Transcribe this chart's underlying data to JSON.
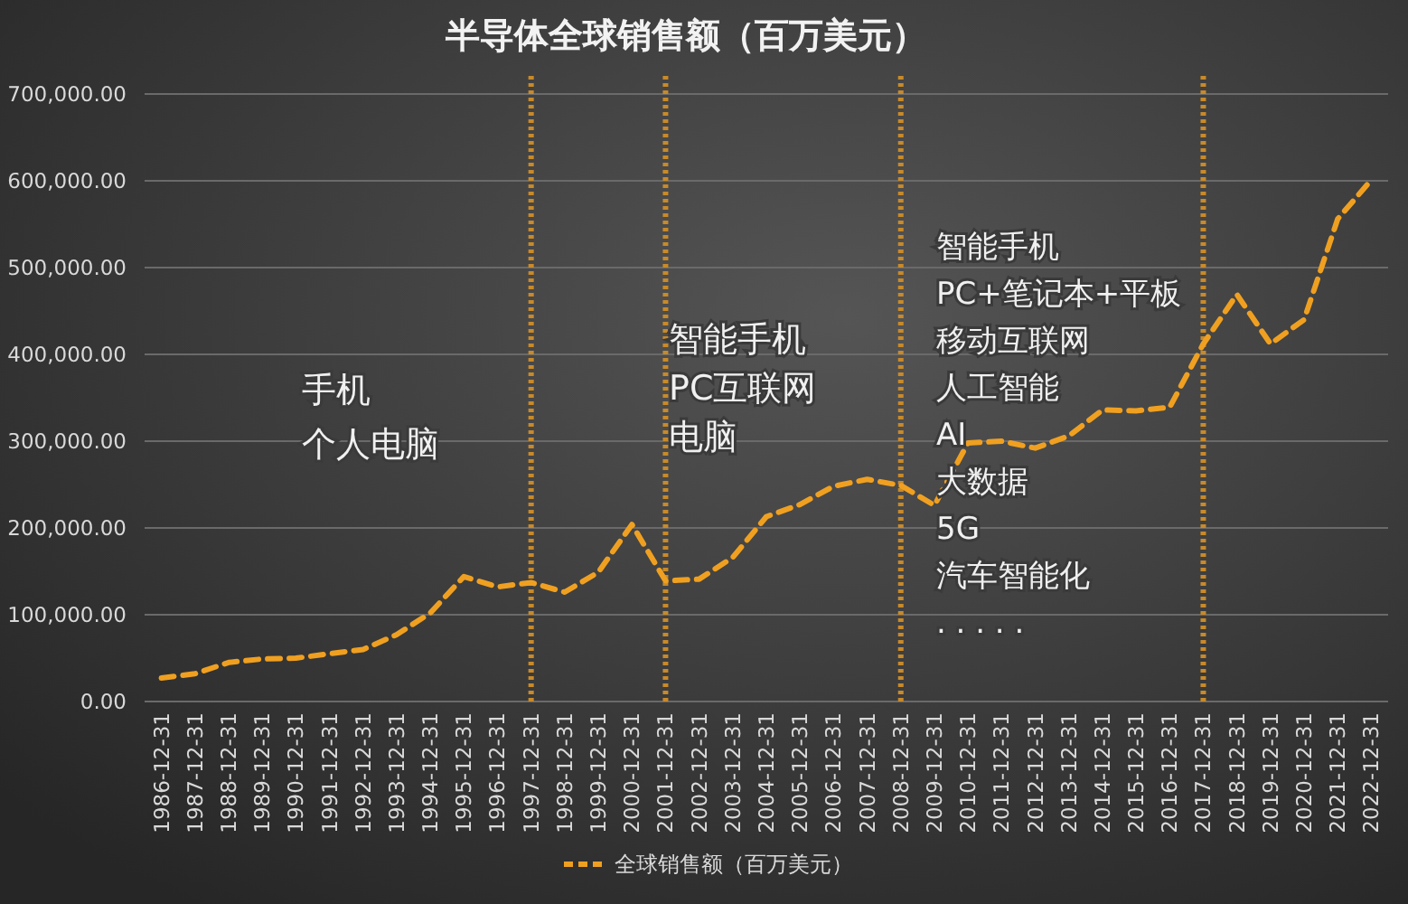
{
  "chart_data": {
    "type": "line",
    "title": "半导体全球销售额（百万美元）",
    "categories": [
      "1986-12-31",
      "1987-12-31",
      "1988-12-31",
      "1989-12-31",
      "1990-12-31",
      "1991-12-31",
      "1992-12-31",
      "1993-12-31",
      "1994-12-31",
      "1995-12-31",
      "1996-12-31",
      "1997-12-31",
      "1998-12-31",
      "1999-12-31",
      "2000-12-31",
      "2001-12-31",
      "2002-12-31",
      "2003-12-31",
      "2004-12-31",
      "2005-12-31",
      "2006-12-31",
      "2007-12-31",
      "2008-12-31",
      "2009-12-31",
      "2010-12-31",
      "2011-12-31",
      "2012-12-31",
      "2013-12-31",
      "2014-12-31",
      "2015-12-31",
      "2016-12-31",
      "2017-12-31",
      "2018-12-31",
      "2019-12-31",
      "2020-12-31",
      "2021-12-31",
      "2022-12-31"
    ],
    "series": [
      {
        "name": "全球销售额（百万美元）",
        "color": "#f0a020",
        "values": [
          27000,
          32000,
          45000,
          49000,
          50000,
          55000,
          60000,
          77000,
          102000,
          144000,
          132000,
          137000,
          126000,
          149000,
          204000,
          139000,
          141000,
          166000,
          213000,
          227000,
          248000,
          256000,
          249000,
          226000,
          298000,
          300000,
          292000,
          306000,
          336000,
          335000,
          339000,
          412000,
          469000,
          412000,
          440000,
          556000,
          601000
        ]
      }
    ],
    "ylim": [
      0,
      700000
    ],
    "yticks": [
      {
        "value": 0,
        "label": "0.00"
      },
      {
        "value": 100000,
        "label": "100,000.00"
      },
      {
        "value": 200000,
        "label": "200,000.00"
      },
      {
        "value": 300000,
        "label": "300,000.00"
      },
      {
        "value": 400000,
        "label": "400,000.00"
      },
      {
        "value": 500000,
        "label": "500,000.00"
      },
      {
        "value": 600000,
        "label": "600,000.00"
      },
      {
        "value": 700000,
        "label": "700,000.00"
      }
    ],
    "grid": "y",
    "legend": "bottom",
    "line_style": "dashed",
    "marker": "none",
    "ref_lines": [
      {
        "axis": "x",
        "value": "1997-12-31",
        "color": "#c88a2a",
        "line_style": "dotted"
      },
      {
        "axis": "x",
        "value": "2001-12-31",
        "color": "#c88a2a",
        "line_style": "dotted"
      },
      {
        "axis": "x",
        "value": "2008-12-31",
        "color": "#c88a2a",
        "line_style": "dotted"
      },
      {
        "axis": "x",
        "value": "2017-12-31",
        "color": "#c88a2a",
        "line_style": "dotted"
      }
    ],
    "annotations": [
      "手机",
      "个人电脑",
      "智能手机",
      "PC互联网",
      "电脑",
      "智能手机",
      "PC+笔记本+平板",
      "移动互联网",
      "人工智能",
      "AI",
      "大数据",
      "5G",
      "汽车智能化",
      ". . . . ."
    ]
  }
}
